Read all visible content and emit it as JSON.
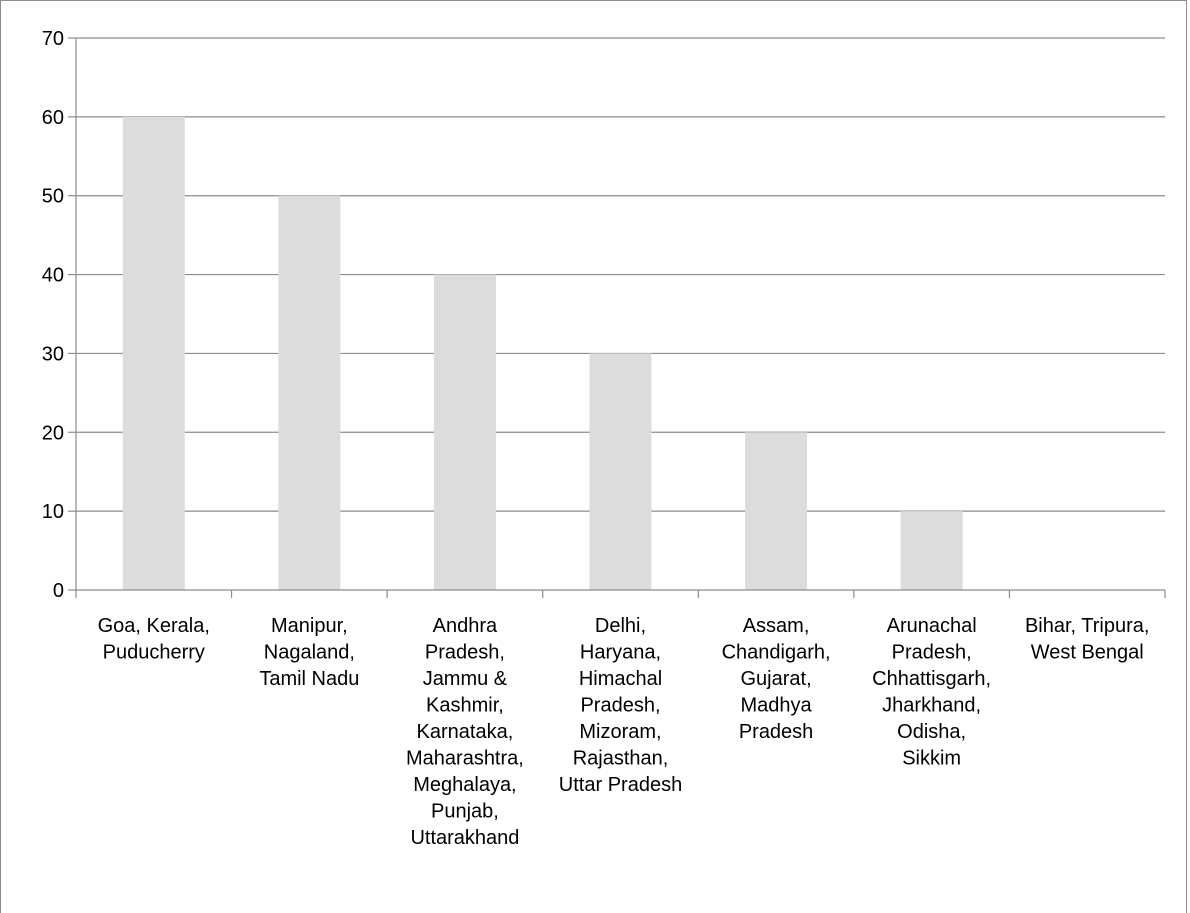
{
  "chart_data": {
    "type": "bar",
    "title": "",
    "xlabel": "",
    "ylabel": "",
    "ylim": [
      0,
      70
    ],
    "yticks": [
      0,
      10,
      20,
      30,
      40,
      50,
      60,
      70
    ],
    "grid": true,
    "legend": "none",
    "categories": [
      [
        "Goa, Kerala,",
        "Puducherry"
      ],
      [
        "Manipur,",
        "Nagaland,",
        "Tamil Nadu"
      ],
      [
        "Andhra",
        "Pradesh,",
        "Jammu &",
        "Kashmir,",
        "Karnataka,",
        "Maharashtra,",
        "Meghalaya,",
        "Punjab,",
        "Uttarakhand"
      ],
      [
        "Delhi,",
        "Haryana,",
        "Himachal",
        "Pradesh,",
        "Mizoram,",
        "Rajasthan,",
        "Uttar Pradesh"
      ],
      [
        "Assam,",
        "Chandigarh,",
        "Gujarat,",
        "Madhya",
        "Pradesh"
      ],
      [
        "Arunachal",
        "Pradesh,",
        "Chhattisgarh,",
        "Jharkhand,",
        "Odisha,",
        "Sikkim"
      ],
      [
        "Bihar, Tripura,",
        "West Bengal"
      ]
    ],
    "values": [
      60,
      50,
      40,
      30,
      20,
      10,
      0
    ],
    "colors": {
      "bar": "#dcdcdc",
      "grid": "#8c8c8c",
      "axis": "#8c8c8c"
    }
  }
}
